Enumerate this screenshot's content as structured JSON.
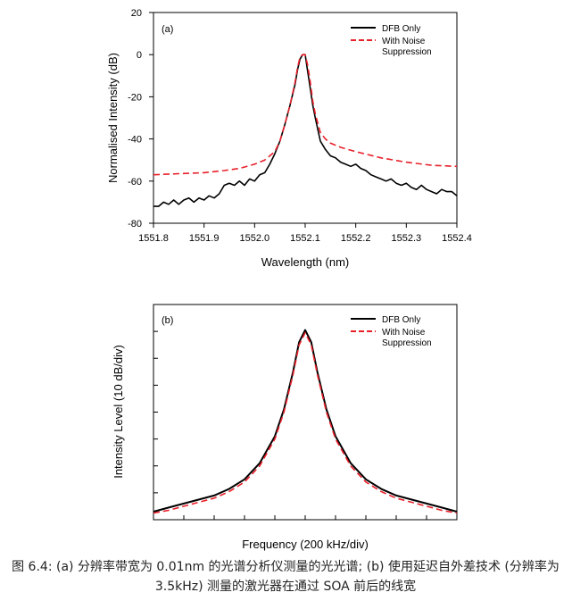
{
  "chart_data": [
    {
      "type": "line",
      "panel_label": "(a)",
      "xlabel": "Wavelength (nm)",
      "ylabel": "Normalised Intensity (dB)",
      "xlim": [
        1551.8,
        1552.4
      ],
      "ylim": [
        -80,
        20
      ],
      "x_ticks": [
        "1551.8",
        "1551.9",
        "1552.0",
        "1552.1",
        "1552.2",
        "1552.3",
        "1552.4"
      ],
      "y_ticks": [
        "-80",
        "-60",
        "-40",
        "-20",
        "0",
        "20"
      ],
      "legend": "top-right",
      "series": [
        {
          "name": "DFB Only",
          "color": "#000000",
          "style": "solid",
          "x": [
            1551.8,
            1551.81,
            1551.82,
            1551.83,
            1551.84,
            1551.85,
            1551.86,
            1551.87,
            1551.88,
            1551.89,
            1551.9,
            1551.91,
            1551.92,
            1551.93,
            1551.94,
            1551.95,
            1551.96,
            1551.97,
            1551.98,
            1551.99,
            1552.0,
            1552.01,
            1552.02,
            1552.03,
            1552.04,
            1552.05,
            1552.06,
            1552.07,
            1552.08,
            1552.085,
            1552.09,
            1552.095,
            1552.1,
            1552.105,
            1552.11,
            1552.115,
            1552.12,
            1552.13,
            1552.14,
            1552.15,
            1552.16,
            1552.17,
            1552.18,
            1552.19,
            1552.2,
            1552.21,
            1552.22,
            1552.23,
            1552.24,
            1552.25,
            1552.26,
            1552.27,
            1552.28,
            1552.29,
            1552.3,
            1552.31,
            1552.32,
            1552.33,
            1552.34,
            1552.35,
            1552.36,
            1552.37,
            1552.38,
            1552.39,
            1552.4
          ],
          "values": [
            -72,
            -72,
            -70,
            -71,
            -69,
            -71,
            -69,
            -68,
            -70,
            -68,
            -69,
            -67,
            -68,
            -66,
            -62,
            -61,
            -62,
            -60,
            -62,
            -59,
            -60,
            -57,
            -56,
            -52,
            -47,
            -41,
            -33,
            -24,
            -14,
            -7,
            -2,
            0,
            0,
            -8,
            -16,
            -24,
            -30,
            -41,
            -45,
            -48,
            -49,
            -51,
            -52,
            -53,
            -52,
            -54,
            -55,
            -57,
            -58,
            -59,
            -60,
            -59,
            -61,
            -62,
            -61,
            -63,
            -64,
            -62,
            -64,
            -65,
            -66,
            -64,
            -65,
            -65,
            -67
          ]
        },
        {
          "name": "With Noise Suppression",
          "color": "#e8202a",
          "style": "dashed",
          "x": [
            1551.8,
            1551.85,
            1551.9,
            1551.94,
            1551.97,
            1552.0,
            1552.02,
            1552.04,
            1552.05,
            1552.06,
            1552.07,
            1552.08,
            1552.085,
            1552.09,
            1552.095,
            1552.1,
            1552.105,
            1552.11,
            1552.115,
            1552.12,
            1552.13,
            1552.14,
            1552.15,
            1552.17,
            1552.2,
            1552.25,
            1552.3,
            1552.35,
            1552.4
          ],
          "values": [
            -57,
            -56.5,
            -56,
            -55,
            -54,
            -52,
            -50,
            -46,
            -41,
            -33,
            -24,
            -13,
            -6,
            -1,
            0,
            0,
            -5,
            -13,
            -22,
            -28,
            -37,
            -40,
            -42,
            -44,
            -46,
            -49,
            -51,
            -52.5,
            -53
          ]
        }
      ]
    },
    {
      "type": "line",
      "panel_label": "(b)",
      "xlabel": "Frequency (200 kHz/div)",
      "ylabel": "Intensity Level (10 dB/div)",
      "x_divisions": 10,
      "y_divisions": 8,
      "legend": "top-right",
      "series": [
        {
          "name": "DFB Only",
          "color": "#000000",
          "style": "solid",
          "x": [
            -5,
            -4.5,
            -4,
            -3.5,
            -3,
            -2.5,
            -2,
            -1.5,
            -1,
            -0.7,
            -0.4,
            -0.2,
            0,
            0.2,
            0.4,
            0.7,
            1,
            1.5,
            2,
            2.5,
            3,
            3.5,
            4,
            4.5,
            5
          ],
          "values": [
            -7.7,
            -7.55,
            -7.4,
            -7.25,
            -7.1,
            -6.85,
            -6.5,
            -5.9,
            -4.9,
            -3.9,
            -2.5,
            -1.4,
            -0.95,
            -1.4,
            -2.5,
            -3.9,
            -4.9,
            -5.9,
            -6.5,
            -6.85,
            -7.1,
            -7.25,
            -7.4,
            -7.55,
            -7.7
          ]
        },
        {
          "name": "With Noise Suppression",
          "color": "#e8202a",
          "style": "dashed",
          "x": [
            -5,
            -4.5,
            -4,
            -3.5,
            -3,
            -2.5,
            -2,
            -1.5,
            -1,
            -0.7,
            -0.4,
            -0.2,
            0,
            0.2,
            0.4,
            0.7,
            1,
            1.5,
            2,
            2.5,
            3,
            3.5,
            4,
            4.5,
            5
          ],
          "values": [
            -7.75,
            -7.65,
            -7.5,
            -7.35,
            -7.2,
            -6.95,
            -6.6,
            -6.0,
            -5.0,
            -4.0,
            -2.6,
            -1.5,
            -1.05,
            -1.5,
            -2.6,
            -4.0,
            -5.0,
            -6.0,
            -6.6,
            -6.95,
            -7.2,
            -7.35,
            -7.5,
            -7.65,
            -7.75
          ]
        }
      ]
    }
  ],
  "caption": "图 6.4: (a) 分辨率带宽为 0.01nm 的光谱分析仪测量的光光谱; (b) 使用延迟自外差技术 (分辨率为 3.5kHz) 测量的激光器在通过 SOA 前后的线宽",
  "legend_labels": {
    "dfb": "DFB Only",
    "noise_line1": "With Noise",
    "noise_line2": "Suppression"
  }
}
